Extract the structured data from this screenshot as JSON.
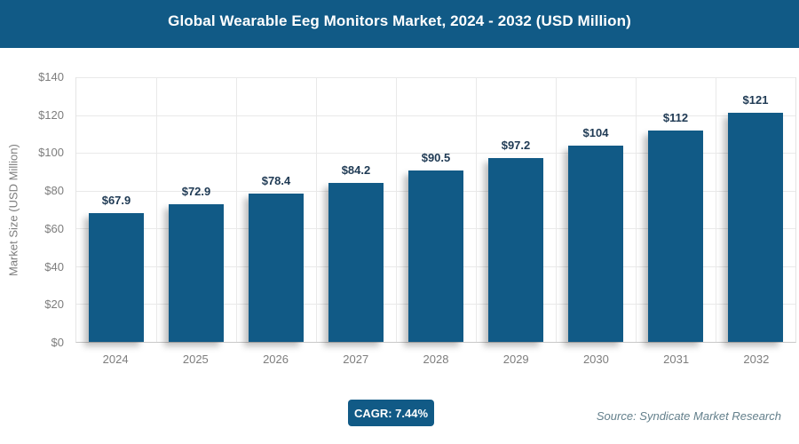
{
  "colors": {
    "primary": "#115a86",
    "value_label": "#1f3a54",
    "axis_text": "#7d7d7d",
    "source_text": "#64808c"
  },
  "header": {
    "title": "Global Wearable Eeg Monitors Market, 2024 - 2032 (USD Million)"
  },
  "chart_data": {
    "type": "bar",
    "title": "Global Wearable Eeg Monitors Market, 2024 - 2032 (USD Million)",
    "categories": [
      "2024",
      "2025",
      "2026",
      "2027",
      "2028",
      "2029",
      "2030",
      "2031",
      "2032"
    ],
    "values": [
      67.9,
      72.9,
      78.4,
      84.2,
      90.5,
      97.2,
      104,
      112,
      121
    ],
    "labels": [
      "$67.9",
      "$72.9",
      "$78.4",
      "$84.2",
      "$90.5",
      "$97.2",
      "$104",
      "$112",
      "$121"
    ],
    "xlabel": "",
    "ylabel": "Market Size (USD Million)",
    "ylim": [
      0,
      140
    ],
    "y_ticks": [
      {
        "value": 0,
        "label": "$0"
      },
      {
        "value": 20,
        "label": "$20"
      },
      {
        "value": 40,
        "label": "$40"
      },
      {
        "value": 60,
        "label": "$60"
      },
      {
        "value": 80,
        "label": "$80"
      },
      {
        "value": 100,
        "label": "$100"
      },
      {
        "value": 120,
        "label": "$120"
      },
      {
        "value": 140,
        "label": "$140"
      }
    ],
    "grid": true,
    "legend": false
  },
  "footer": {
    "cagr_label": "CAGR: 7.44%",
    "source": "Source: Syndicate Market Research"
  }
}
